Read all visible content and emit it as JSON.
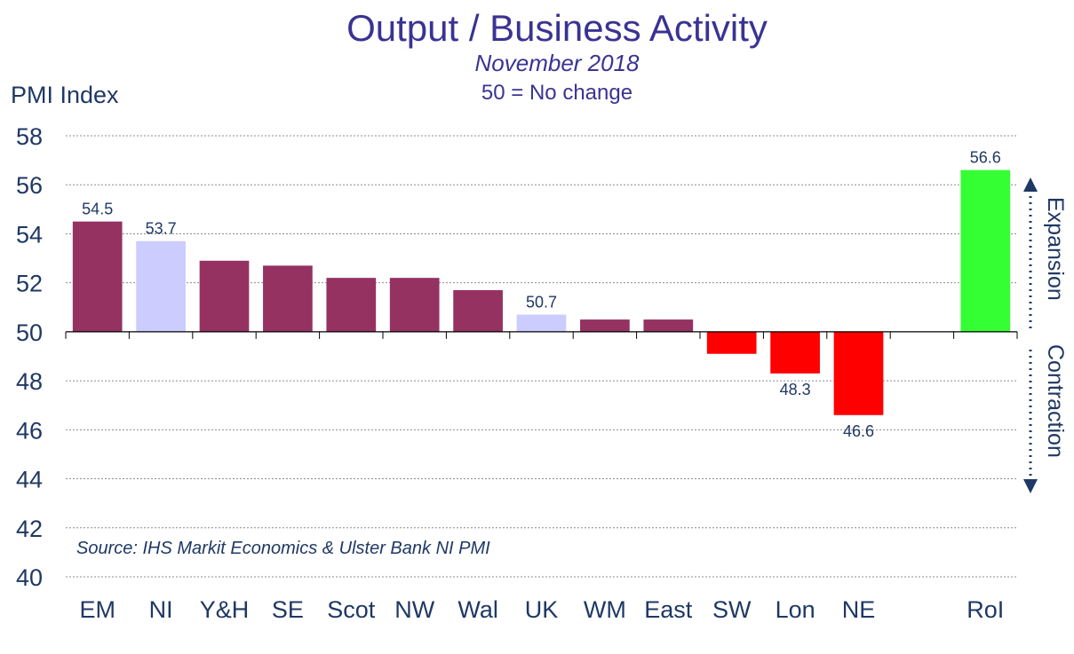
{
  "chart_data": {
    "type": "bar",
    "title": "Output / Business Activity",
    "subtitle": "November 2018",
    "subtitle2": "50 = No change",
    "ylabel": "PMI Index",
    "source": "Source: IHS Markit Economics & Ulster Bank NI PMI",
    "ylim": [
      40,
      58
    ],
    "yticks": [
      "40",
      "42",
      "44",
      "46",
      "48",
      "50",
      "52",
      "54",
      "56",
      "58"
    ],
    "baseline": 50,
    "grid": true,
    "categories": [
      "EM",
      "NI",
      "Y&H",
      "SE",
      "Scot",
      "NW",
      "Wal",
      "UK",
      "WM",
      "East",
      "SW",
      "Lon",
      "NE",
      "",
      "RoI"
    ],
    "values": [
      54.5,
      53.7,
      52.9,
      52.7,
      52.2,
      52.2,
      51.7,
      50.7,
      50.5,
      50.5,
      49.1,
      48.3,
      46.6,
      null,
      56.6
    ],
    "data_labels": [
      "54.5",
      "53.7",
      "",
      "",
      "",
      "",
      "",
      "50.7",
      "",
      "",
      "",
      "48.3",
      "46.6",
      "",
      "56.6"
    ],
    "expansion_label": "Expansion",
    "contraction_label": "Contraction",
    "colors": {
      "title": "#3a3393",
      "axis_text": "#1f3864",
      "label_text": "#1f3864",
      "regional": "#953262",
      "highlight": "#ccccff",
      "negative": "#ff0000",
      "roi": "#33ff33",
      "grid": "#8c8c8c",
      "arrow": "#1f3864"
    },
    "highlighted": [
      "NI",
      "UK"
    ]
  }
}
